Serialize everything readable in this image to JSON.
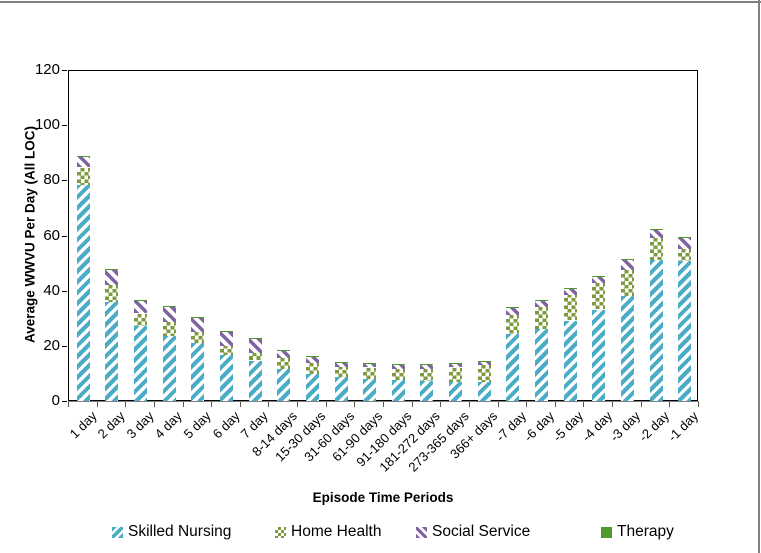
{
  "page": {
    "background": "#ffffff",
    "border_color": "#808080"
  },
  "chart_data": {
    "type": "bar",
    "stacked": true,
    "title": "",
    "xlabel": "Episode Time Periods",
    "ylabel": "Average WWVU Per Day (All LOC)",
    "ylim": [
      0,
      120
    ],
    "ytick_step": 20,
    "grid": false,
    "legend_position": "bottom",
    "categories": [
      "1 day",
      "2 day",
      "3 day",
      "4 day",
      "5 day",
      "6 day",
      "7 day",
      "8-14 days",
      "15-30 days",
      "31-60 days",
      "61-90 days",
      "91-180 days",
      "181-272 days",
      "273-365 days",
      "366+ days",
      "-7 day",
      "-6 day",
      "-5 day",
      "-4 day",
      "-3 day",
      "-2 day",
      "-1 day"
    ],
    "series": [
      {
        "name": "Skilled Nursing",
        "color": "#4BACC6",
        "pattern": "diagonal-up",
        "values": [
          79,
          36.5,
          27.5,
          24,
          21.5,
          17,
          15,
          12,
          10,
          9,
          8.5,
          8,
          7.5,
          7.5,
          7.5,
          24.5,
          26.5,
          29.5,
          33.5,
          38.5,
          51.5,
          51
        ]
      },
      {
        "name": "Home Health",
        "color": "#7E9A3E",
        "pattern": "checker",
        "values": [
          6,
          6,
          4.5,
          5,
          4,
          3.5,
          3,
          4,
          4,
          4,
          4,
          4,
          4.5,
          5,
          6,
          7,
          8,
          9.5,
          9.5,
          9.5,
          8,
          4.5
        ]
      },
      {
        "name": "Social Service",
        "color": "#8064A2",
        "pattern": "diagonal-down",
        "values": [
          3.8,
          5.5,
          4.5,
          5.5,
          5,
          5,
          5,
          2.5,
          2.5,
          1.3,
          1.5,
          1.5,
          1.5,
          1.5,
          1,
          2.5,
          2,
          2,
          2.5,
          3.5,
          3,
          4
        ]
      },
      {
        "name": "Therapy",
        "color": "#4E9A2E",
        "pattern": "solid",
        "values": [
          0.3,
          0.3,
          0.3,
          0.3,
          0.3,
          0.3,
          0.3,
          0.2,
          0.2,
          0.2,
          0.2,
          0.2,
          0.2,
          0.2,
          0.2,
          0.3,
          0.3,
          0.3,
          0.3,
          0.3,
          0.3,
          0.3
        ]
      }
    ]
  }
}
